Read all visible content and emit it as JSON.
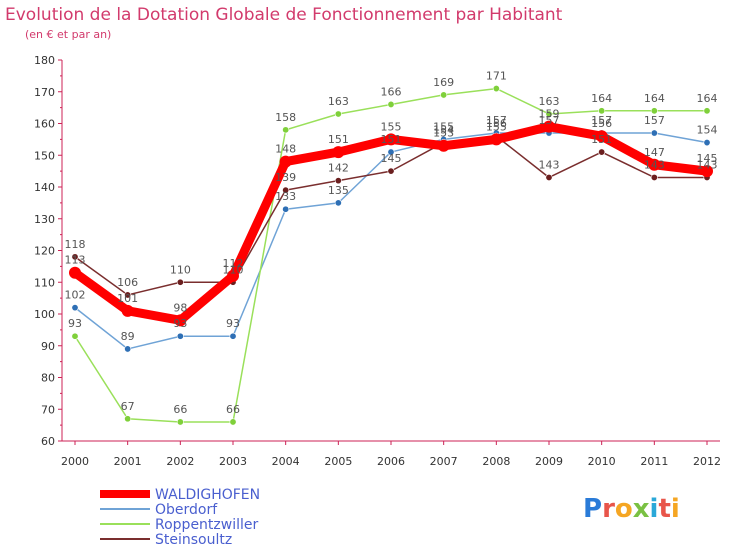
{
  "chart_data": {
    "type": "line",
    "title": "Evolution de la Dotation Globale de Fonctionnement par Habitant",
    "subtitle": "(en € et par an)",
    "xlabel": "",
    "ylabel": "",
    "ylim": [
      60,
      180
    ],
    "yticks": [
      60,
      70,
      80,
      90,
      100,
      110,
      120,
      130,
      140,
      150,
      160,
      170,
      180
    ],
    "categories": [
      "2000",
      "2001",
      "2002",
      "2003",
      "2004",
      "2005",
      "2006",
      "2007",
      "2008",
      "2009",
      "2010",
      "2011",
      "2012"
    ],
    "series": [
      {
        "name": "WALDIGHOFEN",
        "color": "#ff0000",
        "marker": "#ff0000",
        "width": 9,
        "values": [
          113,
          101,
          98,
          112,
          148,
          151,
          155,
          153,
          155,
          159,
          156,
          147,
          145
        ]
      },
      {
        "name": "Oberdorf",
        "color": "#6fa3d6",
        "marker": "#2e6fb5",
        "width": 1.5,
        "values": [
          102,
          89,
          93,
          93,
          133,
          135,
          151,
          155,
          157,
          157,
          157,
          157,
          154
        ]
      },
      {
        "name": "Roppentzwiller",
        "color": "#9ae05a",
        "marker": "#7fd03a",
        "width": 1.5,
        "values": [
          93,
          67,
          66,
          66,
          158,
          163,
          166,
          169,
          171,
          163,
          164,
          164,
          164
        ]
      },
      {
        "name": "Steinsoultz",
        "color": "#7a2e2e",
        "marker": "#6b1f1f",
        "width": 1.5,
        "values": [
          118,
          106,
          110,
          110,
          139,
          142,
          145,
          154,
          156,
          143,
          151,
          143,
          143
        ]
      }
    ],
    "legend_position": "bottom-left",
    "grid": false
  },
  "brand": {
    "text": "Proxiti"
  }
}
